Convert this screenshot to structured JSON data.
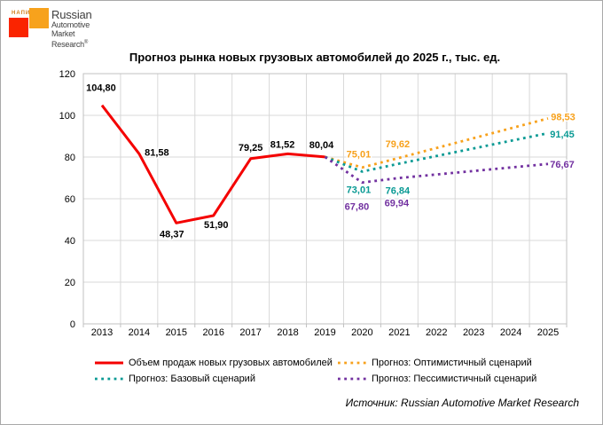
{
  "logo": {
    "napi": "НАПИ",
    "lines": [
      "Russian",
      "Automotive",
      "Market",
      "Research"
    ],
    "reg": "®",
    "red_square_color": "#FA2400",
    "orange_square_color": "#F7A21C"
  },
  "source": {
    "text": "Источник: Russian Automotive Market Research"
  },
  "chart_data": {
    "type": "line",
    "title": "Прогноз рынка новых грузовых автомобилей до 2025 г., тыс. ед.",
    "categories": [
      2013,
      2014,
      2015,
      2016,
      2017,
      2018,
      2019,
      2020,
      2021,
      2022,
      2023,
      2024,
      2025
    ],
    "ylim": [
      0,
      120
    ],
    "ytick_step": 20,
    "grid": true,
    "legend_position": "bottom",
    "decimal_separator": ",",
    "series": [
      {
        "name": "Объем продаж новых грузовых автомобилей",
        "color": "#F40000",
        "style": "solid",
        "label_color": "#000000",
        "values": [
          104.8,
          81.58,
          48.37,
          51.9,
          79.25,
          81.52,
          80.04,
          null,
          null,
          null,
          null,
          null,
          null
        ],
        "label_years": [
          2013,
          2014,
          2015,
          2016,
          2017,
          2018,
          2019
        ]
      },
      {
        "name": "Прогноз: Оптимистичный сценарий",
        "color": "#F7A11C",
        "style": "dotted",
        "label_color": "#F7A11C",
        "values": [
          null,
          null,
          null,
          null,
          null,
          null,
          80.04,
          75.01,
          79.62,
          null,
          null,
          null,
          98.53
        ],
        "label_years": [
          2020,
          2021,
          2025
        ]
      },
      {
        "name": "Прогноз: Базовый сценарий",
        "color": "#0a9a94",
        "style": "dotted",
        "label_color": "#0a9a94",
        "values": [
          null,
          null,
          null,
          null,
          null,
          null,
          80.04,
          73.01,
          76.84,
          null,
          null,
          null,
          91.45
        ],
        "label_years": [
          2020,
          2021,
          2025
        ]
      },
      {
        "name": "Прогноз: Пессимистичный сценарий",
        "color": "#7231a0",
        "style": "dotted",
        "label_color": "#7231a0",
        "values": [
          null,
          null,
          null,
          null,
          null,
          null,
          80.04,
          67.8,
          69.94,
          null,
          null,
          null,
          76.67
        ],
        "label_years": [
          2020,
          2021,
          2025
        ]
      }
    ]
  }
}
